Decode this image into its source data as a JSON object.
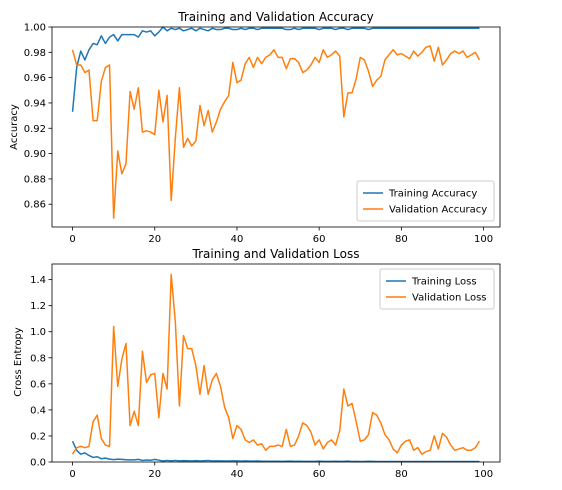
{
  "chart_data": [
    {
      "type": "line",
      "title": "Training and Validation Accuracy",
      "xlabel": "",
      "ylabel": "Accuracy",
      "xlim": [
        -5,
        104
      ],
      "ylim": [
        0.842,
        1.0
      ],
      "xticks": [
        0,
        20,
        40,
        60,
        80,
        100
      ],
      "xtick_labels": [
        "0",
        "20",
        "40",
        "60",
        "80",
        "100"
      ],
      "yticks": [
        0.86,
        0.88,
        0.9,
        0.92,
        0.94,
        0.96,
        0.98,
        1.0
      ],
      "ytick_labels": [
        "0.86",
        "0.88",
        "0.90",
        "0.92",
        "0.94",
        "0.96",
        "0.98",
        "1.00"
      ],
      "grid": false,
      "legend_position": "lower-right",
      "series": [
        {
          "name": "Training Accuracy",
          "color": "#1f77b4",
          "x": [
            0,
            1,
            2,
            3,
            4,
            5,
            6,
            7,
            8,
            9,
            10,
            11,
            12,
            13,
            14,
            15,
            16,
            17,
            18,
            19,
            20,
            21,
            22,
            23,
            24,
            25,
            26,
            27,
            28,
            29,
            30,
            31,
            32,
            33,
            34,
            35,
            36,
            37,
            38,
            39,
            40,
            41,
            42,
            43,
            44,
            45,
            46,
            47,
            48,
            49,
            50,
            51,
            52,
            53,
            54,
            55,
            56,
            57,
            58,
            59,
            60,
            61,
            62,
            63,
            64,
            65,
            66,
            67,
            68,
            69,
            70,
            71,
            72,
            73,
            74,
            75,
            76,
            77,
            78,
            79,
            80,
            81,
            82,
            83,
            84,
            85,
            86,
            87,
            88,
            89,
            90,
            91,
            92,
            93,
            94,
            95,
            96,
            97,
            98,
            99
          ],
          "values": [
            0.933,
            0.968,
            0.981,
            0.974,
            0.982,
            0.987,
            0.986,
            0.993,
            0.987,
            0.992,
            0.994,
            0.989,
            0.994,
            0.994,
            0.994,
            0.994,
            0.992,
            0.997,
            0.996,
            0.997,
            0.993,
            0.996,
            1.0,
            0.997,
            0.999,
            0.998,
            0.999,
            0.997,
            0.998,
            0.999,
            0.997,
            0.999,
            0.998,
            0.997,
            0.999,
            0.998,
            0.998,
            0.999,
            0.999,
            0.998,
            0.998,
            0.999,
            0.998,
            0.999,
            0.999,
            0.998,
            0.999,
            0.999,
            0.999,
            0.999,
            0.999,
            0.999,
            0.998,
            0.998,
            0.999,
            0.998,
            0.999,
            0.999,
            0.999,
            0.999,
            0.998,
            0.999,
            0.999,
            0.999,
            0.998,
            0.999,
            0.999,
            0.998,
            0.999,
            0.999,
            0.999,
            0.999,
            0.998,
            0.999,
            0.999,
            0.999,
            0.999,
            0.999,
            0.999,
            0.999,
            0.999,
            0.999,
            0.999,
            0.999,
            0.999,
            0.999,
            0.999,
            0.999,
            0.999,
            0.999,
            0.999,
            0.999,
            0.999,
            0.999,
            0.999,
            0.999,
            0.999,
            0.999,
            0.999,
            0.999
          ]
        },
        {
          "name": "Validation Accuracy",
          "color": "#ff7f0e",
          "x": [
            0,
            1,
            2,
            3,
            4,
            5,
            6,
            7,
            8,
            9,
            10,
            11,
            12,
            13,
            14,
            15,
            16,
            17,
            18,
            19,
            20,
            21,
            22,
            23,
            24,
            25,
            26,
            27,
            28,
            29,
            30,
            31,
            32,
            33,
            34,
            35,
            36,
            37,
            38,
            39,
            40,
            41,
            42,
            43,
            44,
            45,
            46,
            47,
            48,
            49,
            50,
            51,
            52,
            53,
            54,
            55,
            56,
            57,
            58,
            59,
            60,
            61,
            62,
            63,
            64,
            65,
            66,
            67,
            68,
            69,
            70,
            71,
            72,
            73,
            74,
            75,
            76,
            77,
            78,
            79,
            80,
            81,
            82,
            83,
            84,
            85,
            86,
            87,
            88,
            89,
            90,
            91,
            92,
            93,
            94,
            95,
            96,
            97,
            98,
            99
          ],
          "values": [
            0.982,
            0.97,
            0.97,
            0.964,
            0.966,
            0.926,
            0.926,
            0.957,
            0.968,
            0.97,
            0.849,
            0.902,
            0.884,
            0.892,
            0.949,
            0.935,
            0.952,
            0.917,
            0.918,
            0.917,
            0.915,
            0.95,
            0.925,
            0.946,
            0.863,
            0.912,
            0.952,
            0.905,
            0.912,
            0.906,
            0.91,
            0.938,
            0.922,
            0.934,
            0.917,
            0.925,
            0.935,
            0.941,
            0.946,
            0.972,
            0.956,
            0.958,
            0.971,
            0.976,
            0.968,
            0.976,
            0.971,
            0.976,
            0.978,
            0.982,
            0.976,
            0.976,
            0.967,
            0.975,
            0.975,
            0.972,
            0.964,
            0.966,
            0.97,
            0.976,
            0.972,
            0.982,
            0.976,
            0.978,
            0.981,
            0.977,
            0.929,
            0.948,
            0.948,
            0.959,
            0.976,
            0.974,
            0.965,
            0.953,
            0.958,
            0.961,
            0.974,
            0.978,
            0.982,
            0.978,
            0.979,
            0.977,
            0.975,
            0.981,
            0.977,
            0.98,
            0.984,
            0.985,
            0.973,
            0.984,
            0.97,
            0.974,
            0.979,
            0.981,
            0.979,
            0.981,
            0.976,
            0.978,
            0.98,
            0.974
          ]
        }
      ]
    },
    {
      "type": "line",
      "title": "Training and Validation Loss",
      "xlabel": "",
      "ylabel": "Cross Entropy",
      "xlim": [
        -5,
        104
      ],
      "ylim": [
        0.0,
        1.52
      ],
      "xticks": [
        0,
        20,
        40,
        60,
        80,
        100
      ],
      "xtick_labels": [
        "0",
        "20",
        "40",
        "60",
        "80",
        "100"
      ],
      "yticks": [
        0.0,
        0.2,
        0.4,
        0.6,
        0.8,
        1.0,
        1.2,
        1.4
      ],
      "ytick_labels": [
        "0.0",
        "0.2",
        "0.4",
        "0.6",
        "0.8",
        "1.0",
        "1.2",
        "1.4"
      ],
      "grid": false,
      "legend_position": "upper-right",
      "series": [
        {
          "name": "Training Loss",
          "color": "#1f77b4",
          "x": [
            0,
            1,
            2,
            3,
            4,
            5,
            6,
            7,
            8,
            9,
            10,
            11,
            12,
            13,
            14,
            15,
            16,
            17,
            18,
            19,
            20,
            21,
            22,
            23,
            24,
            25,
            26,
            27,
            28,
            29,
            30,
            31,
            32,
            33,
            34,
            35,
            36,
            37,
            38,
            39,
            40,
            41,
            42,
            43,
            44,
            45,
            46,
            47,
            48,
            49,
            50,
            51,
            52,
            53,
            54,
            55,
            56,
            57,
            58,
            59,
            60,
            61,
            62,
            63,
            64,
            65,
            66,
            67,
            68,
            69,
            70,
            71,
            72,
            73,
            74,
            75,
            76,
            77,
            78,
            79,
            80,
            81,
            82,
            83,
            84,
            85,
            86,
            87,
            88,
            89,
            90,
            91,
            92,
            93,
            94,
            95,
            96,
            97,
            98,
            99
          ],
          "values": [
            0.16,
            0.09,
            0.06,
            0.07,
            0.05,
            0.035,
            0.04,
            0.025,
            0.03,
            0.022,
            0.018,
            0.022,
            0.02,
            0.017,
            0.016,
            0.016,
            0.02,
            0.012,
            0.015,
            0.013,
            0.02,
            0.014,
            0.008,
            0.012,
            0.009,
            0.012,
            0.009,
            0.011,
            0.01,
            0.008,
            0.011,
            0.008,
            0.01,
            0.012,
            0.008,
            0.009,
            0.009,
            0.008,
            0.008,
            0.009,
            0.009,
            0.007,
            0.009,
            0.007,
            0.007,
            0.008,
            0.006,
            0.006,
            0.006,
            0.006,
            0.006,
            0.005,
            0.006,
            0.007,
            0.005,
            0.006,
            0.005,
            0.005,
            0.005,
            0.005,
            0.007,
            0.005,
            0.005,
            0.005,
            0.006,
            0.005,
            0.005,
            0.007,
            0.004,
            0.005,
            0.004,
            0.004,
            0.006,
            0.005,
            0.004,
            0.004,
            0.004,
            0.004,
            0.004,
            0.004,
            0.004,
            0.004,
            0.004,
            0.004,
            0.004,
            0.004,
            0.004,
            0.004,
            0.004,
            0.004,
            0.004,
            0.004,
            0.004,
            0.004,
            0.004,
            0.004,
            0.004,
            0.004,
            0.004,
            0.004
          ]
        },
        {
          "name": "Validation Loss",
          "color": "#ff7f0e",
          "x": [
            0,
            1,
            2,
            3,
            4,
            5,
            6,
            7,
            8,
            9,
            10,
            11,
            12,
            13,
            14,
            15,
            16,
            17,
            18,
            19,
            20,
            21,
            22,
            23,
            24,
            25,
            26,
            27,
            28,
            29,
            30,
            31,
            32,
            33,
            34,
            35,
            36,
            37,
            38,
            39,
            40,
            41,
            42,
            43,
            44,
            45,
            46,
            47,
            48,
            49,
            50,
            51,
            52,
            53,
            54,
            55,
            56,
            57,
            58,
            59,
            60,
            61,
            62,
            63,
            64,
            65,
            66,
            67,
            68,
            69,
            70,
            71,
            72,
            73,
            74,
            75,
            76,
            77,
            78,
            79,
            80,
            81,
            82,
            83,
            84,
            85,
            86,
            87,
            88,
            89,
            90,
            91,
            92,
            93,
            94,
            95,
            96,
            97,
            98,
            99
          ],
          "values": [
            0.06,
            0.11,
            0.12,
            0.11,
            0.12,
            0.31,
            0.36,
            0.18,
            0.13,
            0.12,
            1.04,
            0.58,
            0.79,
            0.91,
            0.28,
            0.39,
            0.28,
            0.85,
            0.61,
            0.67,
            0.68,
            0.34,
            0.68,
            0.56,
            1.44,
            1.08,
            0.43,
            0.97,
            0.87,
            0.87,
            0.74,
            0.52,
            0.74,
            0.52,
            0.63,
            0.68,
            0.58,
            0.42,
            0.34,
            0.18,
            0.28,
            0.25,
            0.17,
            0.15,
            0.17,
            0.13,
            0.14,
            0.09,
            0.12,
            0.12,
            0.13,
            0.12,
            0.25,
            0.12,
            0.13,
            0.2,
            0.3,
            0.28,
            0.23,
            0.13,
            0.17,
            0.1,
            0.15,
            0.17,
            0.13,
            0.24,
            0.56,
            0.43,
            0.45,
            0.31,
            0.16,
            0.17,
            0.21,
            0.38,
            0.36,
            0.3,
            0.21,
            0.17,
            0.1,
            0.07,
            0.13,
            0.16,
            0.17,
            0.09,
            0.11,
            0.06,
            0.08,
            0.09,
            0.2,
            0.1,
            0.22,
            0.19,
            0.13,
            0.09,
            0.1,
            0.11,
            0.09,
            0.09,
            0.11,
            0.16
          ]
        }
      ]
    }
  ]
}
